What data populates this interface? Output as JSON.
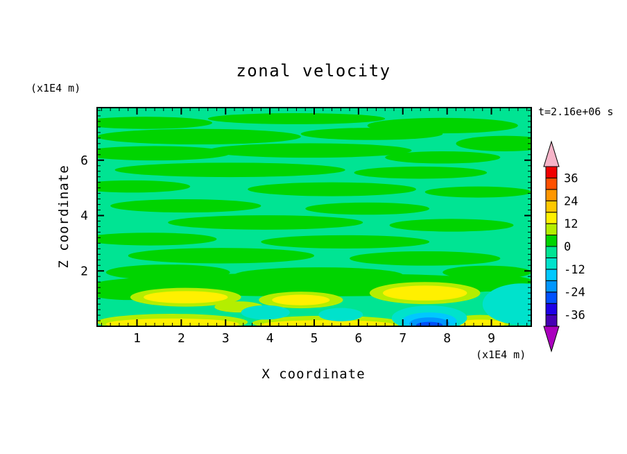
{
  "title": "zonal velocity",
  "annotation": "t=2.16e+06 s",
  "axes": {
    "x_label": "X coordinate",
    "x_unit": "(x1E4 m)",
    "y_label": "Z coordinate",
    "y_unit": "(x1E4 m)"
  },
  "colors": {
    "text": "#000000",
    "frame": "#000000",
    "page_background": "#ffffff"
  },
  "chart_data": {
    "type": "filled-contour",
    "title": "zonal velocity",
    "xlabel": "X coordinate",
    "ylabel": "Z coordinate",
    "x_unit": "(x1E4 m)",
    "y_unit": "(x1E4 m)",
    "time_annotation": "t=2.16e+06 s",
    "x_range": [
      0.1,
      9.9
    ],
    "y_range": [
      0,
      7.9
    ],
    "x_ticks": [
      1,
      2,
      3,
      4,
      5,
      6,
      7,
      8,
      9
    ],
    "y_ticks": [
      2,
      4,
      6
    ],
    "minor_tick_step": 0.2,
    "grid": false,
    "colorbar": {
      "position": "right",
      "levels": [
        -42,
        -36,
        -30,
        -24,
        -18,
        -12,
        -6,
        0,
        6,
        12,
        18,
        24,
        30,
        36,
        42
      ],
      "band_colors": [
        "#4600b4",
        "#1e00e6",
        "#0050ff",
        "#0096ff",
        "#00c8ff",
        "#00e2cc",
        "#00e493",
        "#00d400",
        "#b4ee00",
        "#fff000",
        "#ffc800",
        "#ff9600",
        "#ff5000",
        "#f00000"
      ],
      "labels": [
        36,
        24,
        12,
        0,
        -12,
        -24,
        -36
      ],
      "over_arrow_color": "#f6b4c8",
      "under_arrow_color": "#aa00be"
    },
    "field": {
      "description": "Zonal velocity field: near-zero values over most of the domain (bands -6..0 and 0..6), positive yellow anomalies (12..18) near the bottom boundary, negative cyan/blue anomalies (-12 to -30) near the bottom around x=4, x=5.6, x=7.6 and the lower-right edge.",
      "background_value": -3,
      "features": [
        {
          "v": 3,
          "cx": 1.2,
          "cy": 7.35,
          "rx": 1.5,
          "ry": 0.22
        },
        {
          "v": 3,
          "cx": 4.6,
          "cy": 7.5,
          "rx": 2.0,
          "ry": 0.2
        },
        {
          "v": 3,
          "cx": 7.9,
          "cy": 7.25,
          "rx": 1.7,
          "ry": 0.28
        },
        {
          "v": 3,
          "cx": 2.4,
          "cy": 6.85,
          "rx": 2.3,
          "ry": 0.28
        },
        {
          "v": 3,
          "cx": 6.3,
          "cy": 6.95,
          "rx": 1.6,
          "ry": 0.22
        },
        {
          "v": 3,
          "cx": 9.3,
          "cy": 6.6,
          "rx": 1.1,
          "ry": 0.28
        },
        {
          "v": 3,
          "cx": 1.4,
          "cy": 6.25,
          "rx": 1.7,
          "ry": 0.26
        },
        {
          "v": 3,
          "cx": 4.9,
          "cy": 6.35,
          "rx": 2.3,
          "ry": 0.26
        },
        {
          "v": 3,
          "cx": 7.9,
          "cy": 6.1,
          "rx": 1.3,
          "ry": 0.22
        },
        {
          "v": 3,
          "cx": 3.1,
          "cy": 5.65,
          "rx": 2.6,
          "ry": 0.26
        },
        {
          "v": 3,
          "cx": 7.4,
          "cy": 5.55,
          "rx": 1.5,
          "ry": 0.22
        },
        {
          "v": 3,
          "cx": 0.9,
          "cy": 5.05,
          "rx": 1.3,
          "ry": 0.22
        },
        {
          "v": 3,
          "cx": 5.4,
          "cy": 4.95,
          "rx": 1.9,
          "ry": 0.25
        },
        {
          "v": 3,
          "cx": 8.7,
          "cy": 4.85,
          "rx": 1.2,
          "ry": 0.2
        },
        {
          "v": 3,
          "cx": 2.1,
          "cy": 4.35,
          "rx": 1.7,
          "ry": 0.24
        },
        {
          "v": 3,
          "cx": 6.2,
          "cy": 4.25,
          "rx": 1.4,
          "ry": 0.22
        },
        {
          "v": 3,
          "cx": 3.9,
          "cy": 3.75,
          "rx": 2.2,
          "ry": 0.26
        },
        {
          "v": 3,
          "cx": 8.1,
          "cy": 3.65,
          "rx": 1.4,
          "ry": 0.23
        },
        {
          "v": 3,
          "cx": 1.3,
          "cy": 3.15,
          "rx": 1.5,
          "ry": 0.23
        },
        {
          "v": 3,
          "cx": 5.7,
          "cy": 3.05,
          "rx": 1.9,
          "ry": 0.24
        },
        {
          "v": 3,
          "cx": 2.9,
          "cy": 2.55,
          "rx": 2.1,
          "ry": 0.28
        },
        {
          "v": 3,
          "cx": 7.5,
          "cy": 2.45,
          "rx": 1.7,
          "ry": 0.26
        },
        {
          "v": 3,
          "cx": 1.7,
          "cy": 1.95,
          "rx": 1.4,
          "ry": 0.28
        },
        {
          "v": 3,
          "cx": 5.1,
          "cy": 1.85,
          "rx": 1.9,
          "ry": 0.28
        },
        {
          "v": 3,
          "cx": 8.9,
          "cy": 1.95,
          "rx": 1.0,
          "ry": 0.24
        },
        {
          "v": 3,
          "cx": 4.9,
          "cy": 1.5,
          "rx": 4.9,
          "ry": 0.42
        },
        {
          "v": 3,
          "cx": 0.8,
          "cy": 1.3,
          "rx": 1.0,
          "ry": 0.35
        },
        {
          "v": 3,
          "cx": 9.1,
          "cy": 1.55,
          "rx": 0.9,
          "ry": 0.3
        },
        {
          "v": 9,
          "cx": 2.1,
          "cy": 1.05,
          "rx": 1.25,
          "ry": 0.34
        },
        {
          "v": 9,
          "cx": 4.7,
          "cy": 0.95,
          "rx": 0.95,
          "ry": 0.3
        },
        {
          "v": 9,
          "cx": 7.5,
          "cy": 1.2,
          "rx": 1.25,
          "ry": 0.4
        },
        {
          "v": 9,
          "cx": 3.3,
          "cy": 0.7,
          "rx": 0.55,
          "ry": 0.2
        },
        {
          "v": 9,
          "cx": 1.8,
          "cy": 0.15,
          "rx": 1.7,
          "ry": 0.3
        },
        {
          "v": 9,
          "cx": 5.3,
          "cy": 0.12,
          "rx": 1.7,
          "ry": 0.26
        },
        {
          "v": 9,
          "cx": 8.75,
          "cy": 0.15,
          "rx": 0.7,
          "ry": 0.26
        },
        {
          "v": 15,
          "cx": 2.1,
          "cy": 1.05,
          "rx": 0.95,
          "ry": 0.22
        },
        {
          "v": 15,
          "cx": 4.7,
          "cy": 0.95,
          "rx": 0.65,
          "ry": 0.19
        },
        {
          "v": 15,
          "cx": 7.5,
          "cy": 1.2,
          "rx": 0.95,
          "ry": 0.27
        },
        {
          "v": 15,
          "cx": 1.8,
          "cy": 0.08,
          "rx": 1.5,
          "ry": 0.2
        },
        {
          "v": 15,
          "cx": 5.3,
          "cy": 0.06,
          "rx": 1.5,
          "ry": 0.16
        },
        {
          "v": 15,
          "cx": 8.75,
          "cy": 0.08,
          "rx": 0.55,
          "ry": 0.16
        },
        {
          "v": -9,
          "cx": 3.9,
          "cy": 0.5,
          "rx": 0.55,
          "ry": 0.26
        },
        {
          "v": -9,
          "cx": 5.6,
          "cy": 0.42,
          "rx": 0.5,
          "ry": 0.24
        },
        {
          "v": -9,
          "cx": 9.7,
          "cy": 0.8,
          "rx": 0.9,
          "ry": 0.75
        },
        {
          "v": -9,
          "cx": 7.6,
          "cy": 0.3,
          "rx": 0.85,
          "ry": 0.45
        },
        {
          "v": -15,
          "cx": 7.6,
          "cy": 0.18,
          "rx": 0.62,
          "ry": 0.32
        },
        {
          "v": -21,
          "cx": 7.6,
          "cy": 0.1,
          "rx": 0.45,
          "ry": 0.22
        },
        {
          "v": -27,
          "cx": 7.6,
          "cy": 0.04,
          "rx": 0.3,
          "ry": 0.12
        }
      ]
    }
  }
}
